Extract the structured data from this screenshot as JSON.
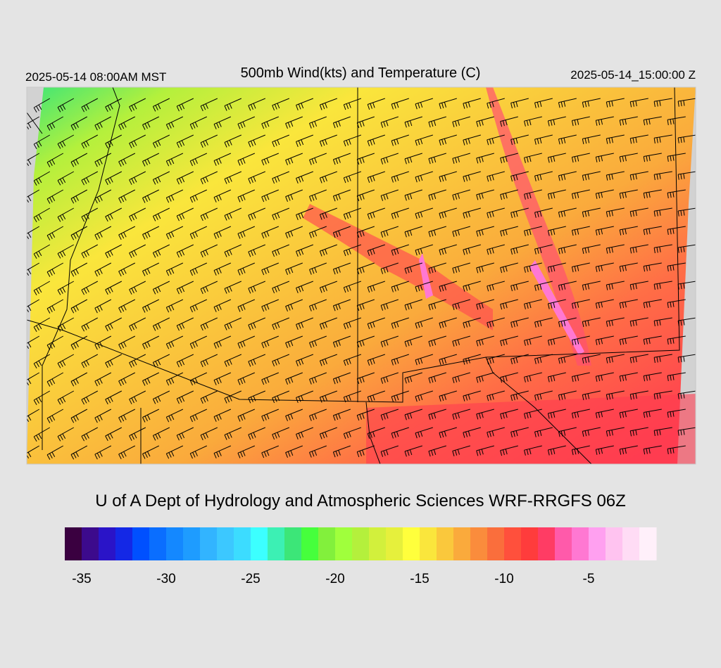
{
  "header": {
    "left": "2025-05-14 08:00AM MST",
    "title": "500mb Wind(kts) and Temperature (C)",
    "right": "2025-05-14_15:00:00 Z"
  },
  "footer": "U of A Dept of Hydrology and Atmospheric Sciences WRF-RRGFS 06Z",
  "colorbar": {
    "xlim": [
      -36,
      -1
    ],
    "xticks": [
      -35,
      -30,
      -25,
      -20,
      -15,
      -10,
      -5
    ],
    "colors": [
      "#3a0040",
      "#3c0a8c",
      "#2a14c8",
      "#1428e6",
      "#0050ff",
      "#0a6eff",
      "#1488ff",
      "#1e9cff",
      "#32b4ff",
      "#3cc8ff",
      "#3cdcff",
      "#3cffff",
      "#3cf0b4",
      "#3ce678",
      "#46ff3c",
      "#82f03c",
      "#a0ff3c",
      "#b4f03c",
      "#d2f03c",
      "#e6f03c",
      "#ffff3c",
      "#fae63c",
      "#fac83c",
      "#faaa3c",
      "#fa8c3c",
      "#fa6e3c",
      "#ff503c",
      "#ff3c3c",
      "#ff3c64",
      "#ff5aaa",
      "#ff78d2",
      "#ffa0f0",
      "#ffc3f0",
      "#ffdcf5",
      "#fff0fa"
    ]
  }
}
